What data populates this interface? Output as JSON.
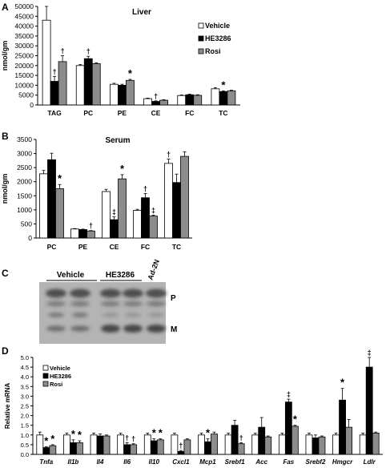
{
  "colors": {
    "vehicle": "#ffffff",
    "he3286": "#000000",
    "rosi": "#8c8c8c",
    "axis": "#000000",
    "blot_background": "#b4b4b4",
    "blot_band": "#3c3c3c"
  },
  "panels": {
    "A": {
      "letter": "A"
    },
    "B": {
      "letter": "B"
    },
    "C": {
      "letter": "C",
      "lane_groups": [
        "Vehicle",
        "HE3286",
        "Ad-2N"
      ],
      "band_labels": [
        "P",
        "M"
      ]
    },
    "D": {
      "letter": "D"
    }
  },
  "chart_data": [
    {
      "panel": "A",
      "type": "bar",
      "title": "Liver",
      "xlabel": "",
      "ylabel": "nmol/gm",
      "ylim": [
        0,
        50000
      ],
      "yticks": [
        "0",
        "5000",
        "10000",
        "15000",
        "20000",
        "25000",
        "30000",
        "35000",
        "40000",
        "45000",
        "50000"
      ],
      "categories": [
        "TAG",
        "PC",
        "PE",
        "CE",
        "FC",
        "TC"
      ],
      "series": [
        {
          "name": "Vehicle",
          "values": [
            43000,
            20000,
            10500,
            3200,
            4800,
            8200
          ],
          "errors": [
            7000,
            500,
            500,
            300,
            300,
            600
          ]
        },
        {
          "name": "HE3286",
          "values": [
            12000,
            23500,
            10000,
            1800,
            5200,
            6800
          ],
          "errors": [
            2500,
            1200,
            500,
            300,
            300,
            400
          ]
        },
        {
          "name": "Rosi",
          "values": [
            22000,
            21000,
            12500,
            2400,
            4900,
            7200
          ],
          "errors": [
            3000,
            400,
            500,
            300,
            300,
            300
          ]
        }
      ],
      "annotations": [
        {
          "category": "TAG",
          "series": "HE3286",
          "text": "†"
        },
        {
          "category": "TAG",
          "series": "Rosi",
          "text": "†"
        },
        {
          "category": "PC",
          "series": "HE3286",
          "text": "†"
        },
        {
          "category": "PE",
          "series": "Rosi",
          "text": "*"
        },
        {
          "category": "CE",
          "series": "HE3286",
          "text": "†"
        },
        {
          "category": "TC",
          "series": "HE3286",
          "text": "*"
        }
      ],
      "legend": "right"
    },
    {
      "panel": "B",
      "type": "bar",
      "title": "Serum",
      "xlabel": "",
      "ylabel": "nmol/gm",
      "ylim": [
        0,
        3500
      ],
      "yticks": [
        "0",
        "500",
        "1000",
        "1500",
        "2000",
        "2500",
        "3000",
        "3500"
      ],
      "categories": [
        "PC",
        "PE",
        "CE",
        "FC",
        "TC"
      ],
      "series": [
        {
          "name": "Vehicle",
          "values": [
            2280,
            320,
            1650,
            980,
            2650
          ],
          "errors": [
            120,
            15,
            80,
            40,
            150
          ]
        },
        {
          "name": "HE3286",
          "values": [
            2780,
            300,
            650,
            1430,
            1970
          ],
          "errors": [
            230,
            15,
            100,
            150,
            300
          ]
        },
        {
          "name": "Rosi",
          "values": [
            1750,
            250,
            2100,
            780,
            2900
          ],
          "errors": [
            150,
            15,
            150,
            30,
            160
          ]
        }
      ],
      "annotations": [
        {
          "category": "PC",
          "series": "Rosi",
          "text": "*"
        },
        {
          "category": "PE",
          "series": "Rosi",
          "text": "†"
        },
        {
          "category": "CE",
          "series": "HE3286",
          "text": "‡"
        },
        {
          "category": "CE",
          "series": "Rosi",
          "text": "*"
        },
        {
          "category": "FC",
          "series": "HE3286",
          "text": "†"
        },
        {
          "category": "FC",
          "series": "Rosi",
          "text": "‡"
        },
        {
          "category": "TC",
          "series": "Vehicle",
          "text": "†"
        }
      ]
    },
    {
      "panel": "D",
      "type": "bar",
      "title": "",
      "xlabel": "",
      "ylabel": "Relative mRNA",
      "ylim": [
        0,
        5.0
      ],
      "yticks": [
        "0.0",
        "0.5",
        "1.0",
        "1.5",
        "2.0",
        "2.5",
        "3.0",
        "3.5",
        "4.0",
        "4.5",
        "5.0"
      ],
      "categories": [
        "Tnfa",
        "Il1b",
        "Il4",
        "Il6",
        "Il10",
        "Cxcl1",
        "Mcp1",
        "Srebf1",
        "Acc",
        "Fas",
        "Srebf2",
        "Hmgcr",
        "Ldlr"
      ],
      "series": [
        {
          "name": "Vehicle",
          "values": [
            1.0,
            1.0,
            1.0,
            1.0,
            1.0,
            1.0,
            1.0,
            1.0,
            1.0,
            1.0,
            1.0,
            1.0,
            1.0
          ],
          "errors": [
            0.15,
            0.1,
            0.1,
            0.1,
            0.1,
            0.1,
            0.1,
            0.1,
            0.1,
            0.1,
            0.1,
            0.1,
            0.1
          ]
        },
        {
          "name": "HE3286",
          "values": [
            0.35,
            0.6,
            0.95,
            0.5,
            0.7,
            0.15,
            0.65,
            1.5,
            1.4,
            2.7,
            0.85,
            2.8,
            4.5
          ]
        },
        {
          "name": "Rosi",
          "values": [
            0.45,
            0.6,
            0.95,
            0.5,
            0.75,
            0.75,
            1.05,
            0.55,
            0.9,
            1.45,
            0.9,
            1.4,
            1.1
          ]
        }
      ],
      "errors_he3286": [
        0.05,
        0.15,
        0.1,
        0.1,
        0.1,
        0.05,
        0.15,
        0.25,
        0.5,
        0.15,
        0.15,
        0.6,
        0.5
      ],
      "errors_rosi": [
        0.05,
        0.1,
        0.05,
        0.05,
        0.05,
        0.05,
        0.1,
        0.05,
        0.05,
        0.05,
        0.05,
        0.4,
        0.05
      ],
      "annotations": [
        {
          "category": "Tnfa",
          "series": "HE3286",
          "text": "*"
        },
        {
          "category": "Tnfa",
          "series": "Rosi",
          "text": "*"
        },
        {
          "category": "Il1b",
          "series": "HE3286",
          "text": "*"
        },
        {
          "category": "Il1b",
          "series": "Rosi",
          "text": "*"
        },
        {
          "category": "Il6",
          "series": "HE3286",
          "text": "†"
        },
        {
          "category": "Il6",
          "series": "Rosi",
          "text": "†"
        },
        {
          "category": "Il10",
          "series": "HE3286",
          "text": "*"
        },
        {
          "category": "Il10",
          "series": "Rosi",
          "text": "*"
        },
        {
          "category": "Cxcl1",
          "series": "HE3286",
          "text": "†"
        },
        {
          "category": "Mcp1",
          "series": "HE3286",
          "text": "*"
        },
        {
          "category": "Srebf1",
          "series": "Rosi",
          "text": "†"
        },
        {
          "category": "Fas",
          "series": "HE3286",
          "text": "‡"
        },
        {
          "category": "Fas",
          "series": "Rosi",
          "text": "*"
        },
        {
          "category": "Hmgcr",
          "series": "HE3286",
          "text": "*"
        },
        {
          "category": "Ldlr",
          "series": "HE3286",
          "text": "‡"
        }
      ],
      "legend": "top-left"
    }
  ]
}
